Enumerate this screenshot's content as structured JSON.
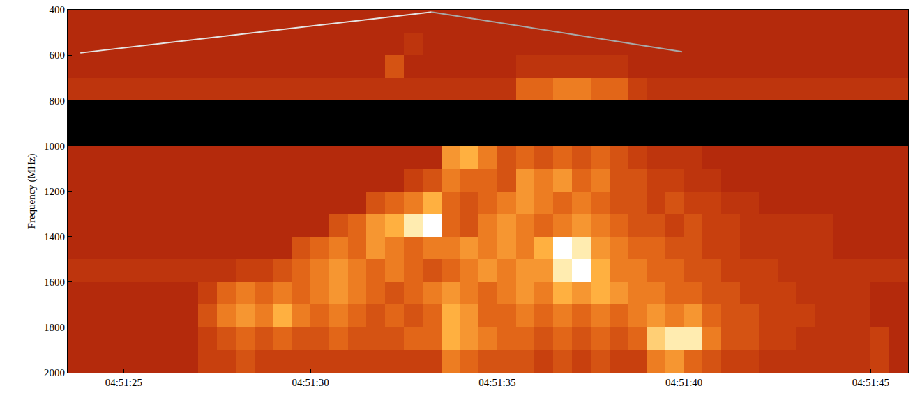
{
  "chart_data": {
    "type": "heatmap",
    "y_label": "Frequency (MHz)",
    "x": [
      "04:51:23.75",
      "04:51:24.25",
      "04:51:24.75",
      "04:51:25.25",
      "04:51:25.75",
      "04:51:26.25",
      "04:51:26.75",
      "04:51:27.25",
      "04:51:27.75",
      "04:51:28.25",
      "04:51:28.75",
      "04:51:29.25",
      "04:51:29.75",
      "04:51:30.25",
      "04:51:30.75",
      "04:51:31.25",
      "04:51:31.75",
      "04:51:32.25",
      "04:51:32.75",
      "04:51:33.25",
      "04:51:33.75",
      "04:51:34.25",
      "04:51:34.75",
      "04:51:35.25",
      "04:51:35.75",
      "04:51:36.25",
      "04:51:36.75",
      "04:51:37.25",
      "04:51:37.75",
      "04:51:38.25",
      "04:51:38.75",
      "04:51:39.25",
      "04:51:39.75",
      "04:51:40.25",
      "04:51:40.75",
      "04:51:41.25",
      "04:51:41.75",
      "04:51:42.25",
      "04:51:42.75",
      "04:51:43.25",
      "04:51:43.75",
      "04:51:44.25",
      "04:51:44.75",
      "04:51:45.25",
      "04:51:45.75"
    ],
    "y": [
      450,
      550,
      650,
      750,
      850,
      950,
      1050,
      1150,
      1250,
      1350,
      1450,
      1550,
      1650,
      1750,
      1850,
      1950
    ],
    "z": [
      [
        0,
        0,
        0,
        0,
        0,
        0,
        0,
        0,
        0,
        0,
        0,
        0,
        0,
        0,
        0,
        0,
        0,
        0,
        0,
        0,
        0,
        0,
        0,
        0,
        0,
        0,
        0,
        0,
        0,
        0,
        0,
        0,
        0,
        0,
        0,
        0,
        0,
        0,
        0,
        0,
        0,
        0,
        0,
        0,
        0
      ],
      [
        0,
        0,
        0,
        0,
        0,
        0,
        0,
        0,
        0,
        0,
        0,
        0,
        0,
        0,
        0,
        0,
        0,
        0,
        1,
        0,
        0,
        0,
        0,
        0,
        0,
        0,
        0,
        0,
        0,
        0,
        0,
        0,
        0,
        0,
        0,
        0,
        0,
        0,
        0,
        0,
        0,
        0,
        0,
        0,
        0
      ],
      [
        0,
        0,
        0,
        0,
        0,
        0,
        0,
        0,
        0,
        0,
        0,
        0,
        0,
        0,
        0,
        0,
        0,
        3,
        0,
        0,
        0,
        0,
        0,
        0,
        1,
        1,
        1,
        1,
        1,
        1,
        0,
        0,
        0,
        0,
        0,
        0,
        0,
        0,
        0,
        0,
        0,
        0,
        0,
        0,
        0
      ],
      [
        1,
        1,
        1,
        1,
        1,
        1,
        1,
        1,
        1,
        1,
        1,
        1,
        1,
        1,
        1,
        1,
        1,
        1,
        1,
        1,
        1,
        1,
        1,
        1,
        4,
        4,
        5,
        5,
        4,
        4,
        2,
        1,
        1,
        1,
        1,
        1,
        1,
        1,
        1,
        1,
        1,
        1,
        1,
        1,
        1
      ],
      [
        null,
        null,
        null,
        null,
        null,
        null,
        null,
        null,
        null,
        null,
        null,
        null,
        null,
        null,
        null,
        null,
        null,
        null,
        null,
        null,
        null,
        null,
        null,
        null,
        null,
        null,
        null,
        null,
        null,
        null,
        null,
        null,
        null,
        null,
        null,
        null,
        null,
        null,
        null,
        null,
        null,
        null,
        null,
        null,
        null
      ],
      [
        null,
        null,
        null,
        null,
        null,
        null,
        null,
        null,
        null,
        null,
        null,
        null,
        null,
        null,
        null,
        null,
        null,
        null,
        null,
        null,
        null,
        null,
        null,
        null,
        null,
        null,
        null,
        null,
        null,
        null,
        null,
        null,
        null,
        null,
        null,
        null,
        null,
        null,
        null,
        null,
        null,
        null,
        null,
        null,
        null
      ],
      [
        0,
        0,
        0,
        0,
        0,
        0,
        0,
        0,
        0,
        0,
        0,
        0,
        0,
        0,
        0,
        0,
        0,
        0,
        0,
        0,
        6,
        7,
        5,
        3,
        4,
        3,
        4,
        3,
        4,
        3,
        2,
        1,
        1,
        1,
        0,
        0,
        0,
        0,
        0,
        0,
        0,
        0,
        0,
        0,
        0
      ],
      [
        0,
        0,
        0,
        0,
        0,
        0,
        0,
        0,
        0,
        0,
        0,
        0,
        0,
        0,
        0,
        0,
        0,
        0,
        2,
        3,
        5,
        4,
        4,
        3,
        6,
        5,
        6,
        4,
        5,
        3,
        3,
        2,
        2,
        1,
        1,
        0,
        0,
        0,
        0,
        0,
        0,
        0,
        0,
        0,
        0
      ],
      [
        0,
        0,
        0,
        0,
        0,
        0,
        0,
        0,
        0,
        0,
        0,
        0,
        0,
        0,
        0,
        0,
        3,
        4,
        5,
        7,
        4,
        3,
        4,
        5,
        6,
        5,
        4,
        5,
        4,
        3,
        3,
        2,
        3,
        2,
        2,
        1,
        1,
        0,
        0,
        0,
        0,
        0,
        0,
        0,
        0
      ],
      [
        0,
        0,
        0,
        0,
        0,
        0,
        0,
        0,
        0,
        0,
        0,
        0,
        0,
        0,
        3,
        4,
        6,
        7,
        9,
        10,
        4,
        3,
        5,
        6,
        5,
        4,
        5,
        6,
        5,
        4,
        3,
        3,
        2,
        3,
        2,
        2,
        1,
        1,
        1,
        1,
        1,
        0,
        0,
        0,
        0
      ],
      [
        0,
        0,
        0,
        0,
        0,
        0,
        0,
        0,
        0,
        0,
        0,
        0,
        3,
        4,
        5,
        4,
        6,
        5,
        4,
        5,
        5,
        6,
        5,
        6,
        5,
        7,
        10,
        9,
        6,
        5,
        4,
        4,
        3,
        3,
        2,
        2,
        1,
        1,
        1,
        1,
        1,
        0,
        0,
        0,
        0
      ],
      [
        1,
        1,
        1,
        1,
        1,
        1,
        1,
        1,
        1,
        2,
        2,
        3,
        4,
        5,
        6,
        5,
        4,
        5,
        4,
        3,
        4,
        5,
        6,
        5,
        6,
        6,
        9,
        10,
        7,
        5,
        5,
        4,
        4,
        3,
        3,
        2,
        2,
        2,
        1,
        1,
        1,
        1,
        1,
        1,
        1
      ],
      [
        0,
        0,
        0,
        0,
        0,
        0,
        0,
        2,
        4,
        5,
        4,
        5,
        4,
        5,
        6,
        5,
        4,
        3,
        4,
        5,
        6,
        5,
        4,
        5,
        6,
        5,
        7,
        6,
        7,
        6,
        5,
        5,
        4,
        4,
        3,
        3,
        2,
        2,
        2,
        1,
        1,
        1,
        1,
        0,
        0
      ],
      [
        0,
        0,
        0,
        0,
        0,
        0,
        0,
        3,
        5,
        6,
        5,
        7,
        5,
        4,
        5,
        4,
        3,
        4,
        3,
        4,
        7,
        6,
        4,
        4,
        5,
        4,
        5,
        4,
        5,
        4,
        5,
        6,
        5,
        6,
        4,
        3,
        3,
        2,
        2,
        2,
        1,
        1,
        1,
        0,
        0
      ],
      [
        0,
        0,
        0,
        0,
        0,
        0,
        0,
        2,
        3,
        4,
        3,
        4,
        3,
        3,
        4,
        3,
        3,
        3,
        4,
        4,
        7,
        6,
        5,
        4,
        4,
        3,
        4,
        3,
        4,
        3,
        4,
        8,
        9,
        9,
        5,
        3,
        3,
        2,
        2,
        1,
        1,
        1,
        1,
        2,
        0
      ],
      [
        0,
        0,
        0,
        0,
        0,
        0,
        0,
        2,
        2,
        3,
        2,
        2,
        2,
        2,
        2,
        2,
        2,
        2,
        2,
        2,
        5,
        4,
        3,
        3,
        3,
        2,
        3,
        2,
        3,
        2,
        2,
        5,
        6,
        4,
        3,
        2,
        2,
        1,
        1,
        1,
        1,
        1,
        1,
        2,
        0
      ]
    ],
    "zlim": [
      0,
      10
    ],
    "xlim": [
      "04:51:23.5",
      "04:51:46"
    ],
    "xticks": [
      "04:51:25",
      "04:51:30",
      "04:51:35",
      "04:51:40",
      "04:51:45"
    ],
    "ylim": [
      2000,
      400
    ],
    "yticks": [
      400,
      600,
      800,
      1000,
      1200,
      1400,
      1600,
      1800,
      2000
    ],
    "series": [
      {
        "type": "line",
        "color": "#e4e4e4",
        "x": [
          "04:51:23.84",
          "04:51:33.24"
        ],
        "values": [
          590,
          410
        ]
      },
      {
        "type": "line",
        "color": "#a8a8a8",
        "x": [
          "04:51:33.24",
          "04:51:39.95"
        ],
        "values": [
          410,
          585
        ]
      }
    ]
  }
}
